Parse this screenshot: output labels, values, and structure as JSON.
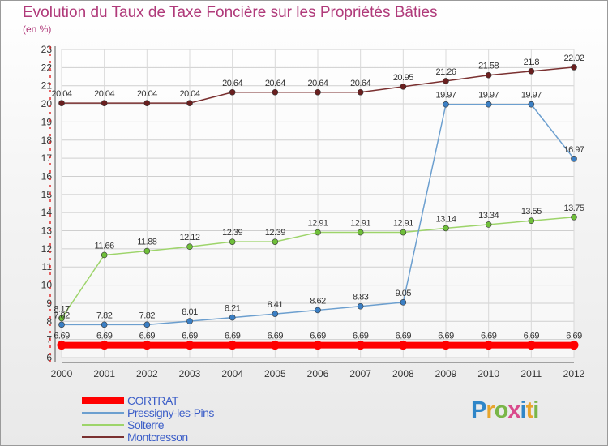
{
  "header": {
    "title": "Evolution du Taux de Taxe Foncière sur les Propriétés Bâties",
    "subtitle": "(en %)"
  },
  "logo": {
    "letters": [
      "P",
      "r",
      "o",
      "x",
      "i",
      "t",
      "i"
    ],
    "colors": [
      "#2f86c8",
      "#e8a52c",
      "#7ab648",
      "#d94a8c",
      "#2f86c8",
      "#e8a52c",
      "#7ab648"
    ]
  },
  "chart_data": {
    "type": "line",
    "title": "Evolution du Taux de Taxe Foncière sur les Propriétés Bâties",
    "ylabel": "(en %)",
    "xlabel": "",
    "categories": [
      "2000",
      "2001",
      "2002",
      "2003",
      "2004",
      "2005",
      "2006",
      "2007",
      "2008",
      "2009",
      "2010",
      "2011",
      "2012"
    ],
    "ylim": [
      6,
      23
    ],
    "yticks": [
      6,
      7,
      8,
      9,
      10,
      11,
      12,
      13,
      14,
      15,
      16,
      17,
      18,
      19,
      20,
      21,
      22,
      23
    ],
    "grid": true,
    "legend_position": "bottom-left",
    "series": [
      {
        "name": "CORTRAT",
        "color": "#ff0000",
        "marker": "#ff0000",
        "width": 8,
        "values": [
          6.69,
          6.69,
          6.69,
          6.69,
          6.69,
          6.69,
          6.69,
          6.69,
          6.69,
          6.69,
          6.69,
          6.69,
          6.69
        ],
        "labels": [
          "6.69",
          "6.69",
          "6.69",
          "6.69",
          "6.69",
          "6.69",
          "6.69",
          "6.69",
          "6.69",
          "6.69",
          "6.69",
          "6.69",
          "6.69"
        ]
      },
      {
        "name": "Pressigny-les-Pins",
        "color": "#6c9fcf",
        "marker": "#3b7fc4",
        "width": 1.5,
        "values": [
          7.82,
          7.82,
          7.82,
          8.01,
          8.21,
          8.41,
          8.62,
          8.83,
          9.05,
          19.97,
          19.97,
          19.97,
          16.97
        ],
        "labels": [
          "7.82",
          "7.82",
          "7.82",
          "8.01",
          "8.21",
          "8.41",
          "8.62",
          "8.83",
          "9.05",
          "19.97",
          "19.97",
          "19.97",
          "16.97"
        ]
      },
      {
        "name": "Solterre",
        "color": "#9dd46a",
        "marker": "#6fbf3a",
        "width": 1.5,
        "values": [
          8.17,
          11.66,
          11.88,
          12.12,
          12.39,
          12.39,
          12.91,
          12.91,
          12.91,
          13.14,
          13.34,
          13.55,
          13.75
        ],
        "labels": [
          "8.17",
          "11.66",
          "11.88",
          "12.12",
          "12.39",
          "12.39",
          "12.91",
          "12.91",
          "12.91",
          "13.14",
          "13.34",
          "13.55",
          "13.75"
        ]
      },
      {
        "name": "Montcresson",
        "color": "#7a3030",
        "marker": "#6a1f1f",
        "width": 1.5,
        "values": [
          20.04,
          20.04,
          20.04,
          20.04,
          20.64,
          20.64,
          20.64,
          20.64,
          20.95,
          21.26,
          21.58,
          21.8,
          22.02
        ],
        "labels": [
          "20.04",
          "20.04",
          "20.04",
          "20.04",
          "20.64",
          "20.64",
          "20.64",
          "20.64",
          "20.95",
          "21.26",
          "21.58",
          "21.8",
          "22.02"
        ]
      }
    ]
  }
}
